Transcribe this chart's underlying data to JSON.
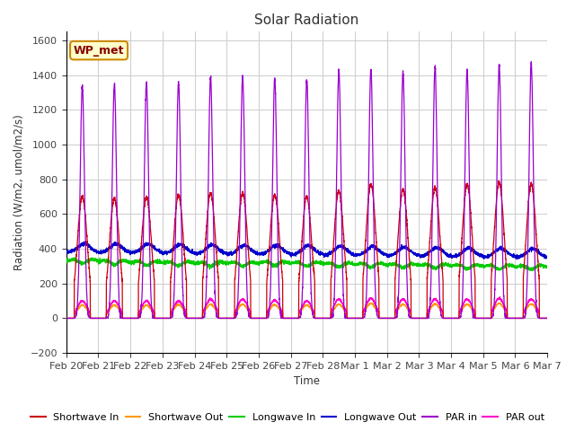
{
  "title": "Solar Radiation",
  "ylabel": "Radiation (W/m2, umol/m2/s)",
  "xlabel": "Time",
  "ylim": [
    -200,
    1650
  ],
  "yticks": [
    -200,
    0,
    200,
    400,
    600,
    800,
    1000,
    1200,
    1400,
    1600
  ],
  "fig_bg_color": "#ffffff",
  "plot_bg_color": "#ffffff",
  "grid_color": "#d0d0d0",
  "num_days": 15,
  "date_labels": [
    "Feb 20",
    "Feb 21",
    "Feb 22",
    "Feb 23",
    "Feb 24",
    "Feb 25",
    "Feb 26",
    "Feb 27",
    "Feb 28",
    "Mar 1",
    "Mar 2",
    "Mar 3",
    "Mar 4",
    "Mar 5",
    "Mar 6",
    "Mar 7"
  ],
  "series": {
    "shortwave_in": {
      "color": "#cc0000",
      "label": "Shortwave In"
    },
    "shortwave_out": {
      "color": "#ff9900",
      "label": "Shortwave Out"
    },
    "longwave_in": {
      "color": "#00cc00",
      "label": "Longwave In"
    },
    "longwave_out": {
      "color": "#0000cc",
      "label": "Longwave Out"
    },
    "par_in": {
      "color": "#9900cc",
      "label": "PAR in"
    },
    "par_out": {
      "color": "#ff00cc",
      "label": "PAR out"
    }
  },
  "annotation_box": {
    "text": "WP_met",
    "fontsize": 9,
    "facecolor": "#ffffcc",
    "edgecolor": "#cc8800",
    "textcolor": "#880000"
  },
  "par_peaks": [
    1340,
    1350,
    1355,
    1360,
    1390,
    1395,
    1385,
    1370,
    1430,
    1435,
    1420,
    1450,
    1430,
    1460,
    1470
  ],
  "sw_peaks": [
    700,
    690,
    700,
    710,
    720,
    720,
    710,
    700,
    730,
    770,
    740,
    750,
    770,
    780,
    775
  ],
  "par_out_peaks": [
    100,
    100,
    100,
    100,
    110,
    110,
    105,
    100,
    110,
    115,
    110,
    110,
    110,
    115,
    110
  ],
  "sw_out_peaks": [
    75,
    75,
    75,
    78,
    80,
    80,
    78,
    75,
    80,
    85,
    80,
    82,
    80,
    85,
    83
  ],
  "lw_in_base": [
    330,
    325,
    320,
    318,
    315,
    315,
    318,
    315,
    310,
    308,
    305,
    303,
    300,
    298,
    295
  ],
  "lw_out_base": [
    380,
    378,
    378,
    375,
    372,
    370,
    370,
    368,
    365,
    363,
    360,
    358,
    355,
    353,
    350
  ]
}
